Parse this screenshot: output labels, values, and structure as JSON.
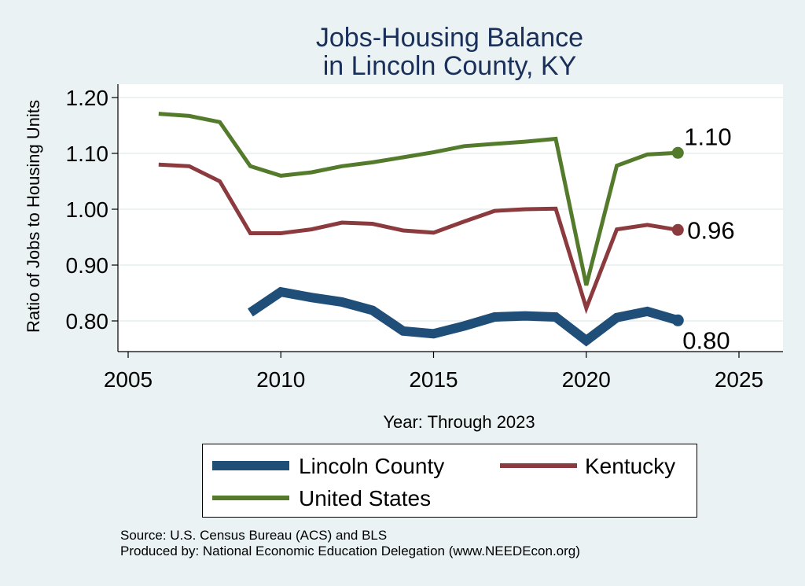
{
  "chart_data": {
    "type": "line",
    "title_lines": [
      "Jobs-Housing Balance",
      "in Lincoln County, KY"
    ],
    "xlabel": "Year: Through 2023",
    "ylabel": "Ratio of Jobs to Housing Units",
    "xlim": [
      2005,
      2025
    ],
    "ylim": [
      0.75,
      1.225
    ],
    "xticks": [
      2005,
      2010,
      2015,
      2020,
      2025
    ],
    "yticks": [
      0.8,
      0.9,
      1.0,
      1.1,
      1.2
    ],
    "ytick_labels": [
      "0.80",
      "0.90",
      "1.00",
      "1.10",
      "1.20"
    ],
    "grid": "horizontal",
    "legend_position": "bottom",
    "series": [
      {
        "name": "Lincoln County",
        "color": "#1f4e79",
        "x": [
          2009,
          2010,
          2011,
          2012,
          2013,
          2014,
          2015,
          2016,
          2017,
          2018,
          2019,
          2020,
          2021,
          2022,
          2023
        ],
        "values": [
          0.815,
          0.852,
          0.842,
          0.834,
          0.819,
          0.782,
          0.777,
          0.791,
          0.807,
          0.809,
          0.807,
          0.765,
          0.806,
          0.817,
          0.801
        ],
        "end_label": "0.80"
      },
      {
        "name": "Kentucky",
        "color": "#8b3a3e",
        "x": [
          2006,
          2007,
          2008,
          2009,
          2010,
          2011,
          2012,
          2013,
          2014,
          2015,
          2016,
          2017,
          2018,
          2019,
          2020,
          2021,
          2022,
          2023
        ],
        "values": [
          1.08,
          1.077,
          1.05,
          0.957,
          0.957,
          0.964,
          0.976,
          0.974,
          0.962,
          0.958,
          0.978,
          0.997,
          1.0,
          1.001,
          0.823,
          0.964,
          0.972,
          0.963
        ],
        "end_label": "0.96"
      },
      {
        "name": "United States",
        "color": "#547b2c",
        "x": [
          2006,
          2007,
          2008,
          2009,
          2010,
          2011,
          2012,
          2013,
          2014,
          2015,
          2016,
          2017,
          2018,
          2019,
          2020,
          2021,
          2022,
          2023
        ],
        "values": [
          1.171,
          1.167,
          1.156,
          1.077,
          1.06,
          1.066,
          1.077,
          1.084,
          1.093,
          1.102,
          1.113,
          1.117,
          1.121,
          1.126,
          0.864,
          1.078,
          1.098,
          1.101
        ],
        "end_label": "1.10"
      }
    ]
  },
  "footer": {
    "source": "Source: U.S. Census Bureau (ACS) and BLS",
    "produced_by": "Produced by: National Economic Education Delegation (www.NEEDEcon.org)"
  },
  "colors": {
    "background": "#eaf2f3",
    "plot_background": "#ffffff",
    "title": "#1a2f5a"
  }
}
